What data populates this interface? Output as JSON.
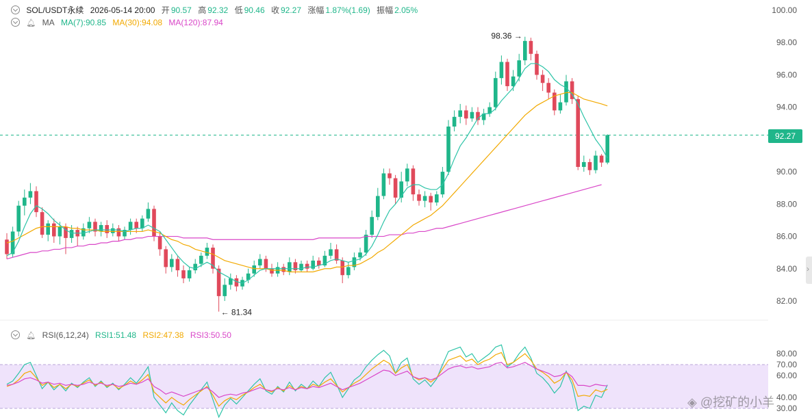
{
  "header": {
    "symbol": "SOL/USDT永续",
    "datetime": "2026-05-14 20:00",
    "open_label": "开",
    "open": "90.57",
    "high_label": "高",
    "high": "92.32",
    "low_label": "低",
    "low": "90.46",
    "close_label": "收",
    "close": "92.27",
    "change_label": "涨幅",
    "change": "1.87%(1.69)",
    "amplitude_label": "振幅",
    "amplitude": "2.05%"
  },
  "ma_legend": {
    "title": "MA",
    "ma7": "MA(7):90.85",
    "ma30": "MA(30):94.08",
    "ma120": "MA(120):87.94"
  },
  "rsi_legend": {
    "title": "RSI(6,12,24)",
    "rsi1": "RSI1:51.48",
    "rsi2": "RSI2:47.38",
    "rsi3": "RSI3:50.50"
  },
  "price_axis": [
    "100.00",
    "98.00",
    "96.00",
    "94.00",
    "92.27",
    "90.00",
    "88.00",
    "86.00",
    "84.00",
    "82.00"
  ],
  "rsi_axis": [
    "80.00",
    "70.00",
    "60.00",
    "40.00",
    "30.00"
  ],
  "current_price": "92.27",
  "annotations": {
    "high": "98.36",
    "low": "81.34"
  },
  "watermark": "挖矿的小羊",
  "colors": {
    "up": "#1fb68a",
    "down": "#e0495b",
    "ma7": "#2ec4a8",
    "ma30": "#f2a900",
    "ma120": "#d946c8",
    "rsi_band": "#efe3fb"
  },
  "chart_data": [
    {
      "type": "candlestick",
      "ylim": [
        80.5,
        100.5
      ],
      "candles": [
        [
          85.8,
          84.9,
          86.2,
          84.6
        ],
        [
          84.9,
          86.3,
          86.6,
          84.7
        ],
        [
          86.3,
          87.9,
          88.2,
          86.0
        ],
        [
          87.9,
          88.4,
          88.9,
          87.3
        ],
        [
          88.4,
          88.8,
          89.3,
          88.0
        ],
        [
          88.8,
          87.5,
          89.1,
          87.2
        ],
        [
          87.5,
          86.1,
          87.8,
          85.9
        ],
        [
          86.1,
          86.8,
          87.0,
          85.7
        ],
        [
          86.8,
          86.0,
          87.1,
          85.6
        ],
        [
          86.0,
          86.6,
          86.9,
          85.5
        ],
        [
          86.6,
          85.9,
          86.8,
          84.9
        ],
        [
          85.9,
          86.4,
          86.7,
          85.6
        ],
        [
          86.4,
          86.0,
          86.6,
          85.4
        ],
        [
          86.0,
          86.5,
          86.8,
          85.8
        ],
        [
          86.5,
          86.9,
          87.2,
          86.2
        ],
        [
          86.9,
          86.3,
          87.1,
          86.0
        ],
        [
          86.3,
          86.7,
          86.9,
          86.0
        ],
        [
          86.7,
          86.2,
          87.0,
          85.9
        ],
        [
          86.2,
          86.5,
          86.8,
          86.0
        ],
        [
          86.5,
          86.0,
          86.7,
          85.7
        ],
        [
          86.0,
          86.4,
          86.6,
          85.8
        ],
        [
          86.4,
          86.9,
          87.1,
          86.1
        ],
        [
          86.9,
          86.5,
          87.1,
          86.2
        ],
        [
          86.5,
          87.1,
          87.3,
          86.3
        ],
        [
          87.1,
          87.7,
          88.1,
          86.9
        ],
        [
          87.7,
          86.0,
          87.9,
          85.7
        ],
        [
          86.0,
          85.2,
          86.3,
          84.8
        ],
        [
          85.2,
          84.1,
          85.4,
          83.7
        ],
        [
          84.1,
          84.6,
          84.9,
          83.8
        ],
        [
          84.6,
          83.9,
          84.8,
          83.5
        ],
        [
          83.9,
          83.4,
          84.2,
          83.1
        ],
        [
          83.4,
          83.9,
          84.1,
          83.2
        ],
        [
          83.9,
          84.3,
          84.6,
          83.7
        ],
        [
          84.3,
          84.8,
          85.0,
          84.1
        ],
        [
          84.8,
          85.3,
          85.6,
          84.6
        ],
        [
          85.3,
          84.0,
          85.5,
          83.7
        ],
        [
          84.0,
          82.3,
          84.2,
          81.34
        ],
        [
          82.3,
          83.0,
          83.4,
          82.0
        ],
        [
          83.0,
          83.4,
          83.7,
          82.7
        ],
        [
          83.4,
          82.9,
          83.6,
          82.6
        ],
        [
          82.9,
          83.3,
          83.5,
          82.7
        ],
        [
          83.3,
          83.7,
          84.0,
          83.1
        ],
        [
          83.7,
          84.2,
          84.5,
          83.5
        ],
        [
          84.2,
          84.6,
          84.9,
          84.0
        ],
        [
          84.6,
          84.0,
          84.8,
          83.8
        ],
        [
          84.0,
          83.7,
          84.3,
          83.5
        ],
        [
          83.7,
          84.1,
          84.4,
          83.5
        ],
        [
          84.1,
          83.8,
          84.3,
          83.6
        ],
        [
          83.8,
          84.4,
          84.7,
          83.6
        ],
        [
          84.4,
          83.9,
          84.6,
          83.7
        ],
        [
          83.9,
          84.3,
          84.5,
          83.8
        ],
        [
          84.3,
          84.0,
          84.5,
          83.8
        ],
        [
          84.0,
          84.5,
          84.8,
          83.9
        ],
        [
          84.5,
          84.2,
          84.7,
          84.0
        ],
        [
          84.2,
          84.8,
          85.1,
          84.1
        ],
        [
          84.8,
          85.2,
          85.6,
          84.6
        ],
        [
          85.2,
          84.5,
          85.5,
          84.3
        ],
        [
          84.5,
          83.6,
          84.7,
          83.1
        ],
        [
          83.6,
          84.1,
          84.4,
          83.4
        ],
        [
          84.1,
          84.7,
          85.0,
          83.9
        ],
        [
          84.7,
          85.0,
          85.3,
          84.5
        ],
        [
          85.0,
          86.1,
          86.4,
          84.8
        ],
        [
          86.1,
          87.2,
          87.6,
          85.9
        ],
        [
          87.2,
          88.5,
          89.0,
          87.0
        ],
        [
          88.5,
          89.9,
          90.2,
          88.3
        ],
        [
          89.9,
          89.6,
          90.2,
          89.2
        ],
        [
          89.6,
          88.4,
          89.8,
          88.0
        ],
        [
          88.4,
          89.4,
          90.0,
          88.1
        ],
        [
          89.4,
          90.2,
          90.5,
          89.1
        ],
        [
          90.2,
          88.6,
          90.4,
          88.2
        ],
        [
          88.6,
          88.2,
          88.9,
          87.9
        ],
        [
          88.2,
          88.5,
          88.8,
          87.8
        ],
        [
          88.5,
          88.1,
          88.7,
          87.6
        ],
        [
          88.1,
          88.6,
          88.8,
          87.9
        ],
        [
          88.6,
          90.0,
          90.3,
          88.4
        ],
        [
          90.0,
          92.8,
          93.2,
          89.8
        ],
        [
          92.8,
          93.4,
          93.8,
          92.5
        ],
        [
          93.4,
          93.8,
          94.2,
          93.0
        ],
        [
          93.8,
          93.3,
          94.1,
          92.9
        ],
        [
          93.3,
          93.7,
          94.0,
          93.1
        ],
        [
          93.7,
          93.2,
          94.0,
          92.9
        ],
        [
          93.2,
          93.6,
          93.9,
          92.9
        ],
        [
          93.6,
          94.0,
          94.3,
          93.4
        ],
        [
          94.0,
          95.8,
          96.2,
          93.8
        ],
        [
          95.8,
          96.8,
          97.2,
          95.4
        ],
        [
          96.8,
          95.3,
          97.0,
          95.0
        ],
        [
          95.3,
          95.9,
          96.3,
          95.0
        ],
        [
          95.9,
          96.9,
          97.3,
          95.6
        ],
        [
          96.9,
          98.1,
          98.36,
          96.6
        ],
        [
          98.1,
          97.3,
          98.3,
          96.9
        ],
        [
          97.3,
          96.0,
          97.5,
          95.7
        ],
        [
          96.0,
          95.5,
          96.3,
          95.0
        ],
        [
          95.5,
          94.9,
          95.8,
          94.5
        ],
        [
          94.9,
          93.8,
          95.1,
          93.5
        ],
        [
          93.8,
          94.3,
          94.8,
          93.6
        ],
        [
          94.3,
          95.6,
          96.0,
          94.1
        ],
        [
          95.6,
          94.5,
          95.8,
          94.2
        ],
        [
          94.5,
          90.3,
          94.7,
          90.1
        ],
        [
          90.3,
          90.6,
          91.0,
          90.0
        ],
        [
          90.6,
          90.1,
          90.8,
          89.8
        ],
        [
          90.1,
          91.0,
          91.3,
          89.9
        ],
        [
          91.0,
          90.57,
          91.1,
          90.3
        ],
        [
          90.57,
          92.27,
          92.32,
          90.46
        ]
      ],
      "ma7": [
        84.8,
        85.0,
        85.7,
        86.6,
        87.4,
        87.9,
        87.7,
        87.4,
        87.0,
        86.7,
        86.4,
        86.2,
        86.2,
        86.2,
        86.3,
        86.4,
        86.4,
        86.4,
        86.4,
        86.4,
        86.3,
        86.4,
        86.5,
        86.5,
        86.7,
        86.5,
        86.3,
        85.8,
        85.3,
        84.8,
        84.4,
        84.1,
        84.0,
        84.2,
        84.4,
        84.2,
        83.8,
        83.6,
        83.4,
        83.2,
        83.1,
        83.3,
        83.6,
        83.9,
        84.0,
        84.0,
        84.0,
        84.0,
        84.0,
        84.0,
        84.0,
        84.1,
        84.1,
        84.2,
        84.3,
        84.5,
        84.6,
        84.5,
        84.4,
        84.5,
        84.6,
        84.9,
        85.4,
        86.1,
        86.9,
        87.6,
        88.0,
        88.5,
        89.0,
        89.2,
        89.2,
        89.0,
        88.9,
        88.9,
        89.2,
        89.9,
        90.8,
        91.6,
        92.1,
        92.7,
        93.3,
        93.6,
        93.6,
        93.9,
        94.4,
        94.8,
        95.2,
        95.8,
        96.4,
        96.7,
        96.7,
        96.5,
        96.2,
        95.7,
        95.4,
        95.2,
        94.8,
        94.2,
        93.4,
        92.7,
        92.0,
        91.5,
        90.85
      ],
      "ma30": [
        85.6,
        85.7,
        85.9,
        86.1,
        86.3,
        86.5,
        86.6,
        86.6,
        86.6,
        86.6,
        86.6,
        86.5,
        86.5,
        86.4,
        86.4,
        86.4,
        86.3,
        86.3,
        86.3,
        86.3,
        86.3,
        86.3,
        86.3,
        86.3,
        86.4,
        86.3,
        86.2,
        86.0,
        85.8,
        85.7,
        85.5,
        85.4,
        85.2,
        85.1,
        85.0,
        84.9,
        84.7,
        84.5,
        84.4,
        84.3,
        84.2,
        84.1,
        84.0,
        84.0,
        84.0,
        83.9,
        83.9,
        83.9,
        83.8,
        83.8,
        83.8,
        83.8,
        83.8,
        83.9,
        84.0,
        84.0,
        84.1,
        84.1,
        84.2,
        84.2,
        84.3,
        84.5,
        84.7,
        85.0,
        85.2,
        85.5,
        85.8,
        86.1,
        86.4,
        86.7,
        86.9,
        87.1,
        87.3,
        87.6,
        87.9,
        88.3,
        88.7,
        89.1,
        89.5,
        89.9,
        90.3,
        90.7,
        91.1,
        91.5,
        91.9,
        92.3,
        92.7,
        93.1,
        93.5,
        93.8,
        94.1,
        94.3,
        94.5,
        94.7,
        94.8,
        94.9,
        94.9,
        94.7,
        94.5,
        94.4,
        94.3,
        94.2,
        94.08
      ],
      "ma120": [
        84.6,
        84.7,
        84.8,
        84.9,
        85.0,
        85.0,
        85.1,
        85.1,
        85.2,
        85.2,
        85.3,
        85.3,
        85.4,
        85.4,
        85.5,
        85.5,
        85.6,
        85.6,
        85.7,
        85.7,
        85.8,
        85.8,
        85.9,
        85.9,
        86.0,
        86.0,
        86.0,
        86.0,
        86.0,
        86.0,
        85.9,
        85.9,
        85.9,
        85.9,
        85.9,
        85.8,
        85.8,
        85.8,
        85.8,
        85.8,
        85.8,
        85.8,
        85.8,
        85.8,
        85.8,
        85.8,
        85.8,
        85.8,
        85.8,
        85.8,
        85.8,
        85.8,
        85.8,
        85.9,
        85.9,
        85.9,
        85.9,
        85.9,
        85.9,
        85.9,
        85.9,
        86.0,
        86.0,
        86.0,
        86.0,
        86.1,
        86.1,
        86.1,
        86.2,
        86.2,
        86.3,
        86.3,
        86.4,
        86.5,
        86.5,
        86.6,
        86.7,
        86.8,
        86.9,
        87.0,
        87.1,
        87.2,
        87.3,
        87.4,
        87.5,
        87.6,
        87.7,
        87.8,
        87.9,
        88.0,
        88.1,
        88.2,
        88.3,
        88.4,
        88.5,
        88.6,
        88.7,
        88.8,
        88.9,
        89.0,
        89.1,
        89.2,
        87.94
      ],
      "label_high": "98.36",
      "label_low": "81.34"
    },
    {
      "type": "line",
      "title": "RSI(6,12,24)",
      "ylim": [
        25,
        85
      ],
      "bands": [
        30,
        70
      ],
      "series": [
        {
          "name": "RSI1",
          "values": [
            52,
            55,
            62,
            70,
            72,
            60,
            48,
            54,
            47,
            52,
            46,
            53,
            49,
            54,
            58,
            50,
            55,
            49,
            53,
            47,
            52,
            58,
            53,
            60,
            68,
            40,
            33,
            26,
            35,
            28,
            24,
            33,
            40,
            47,
            54,
            38,
            22,
            33,
            39,
            34,
            40,
            46,
            52,
            57,
            46,
            43,
            50,
            45,
            54,
            46,
            52,
            48,
            55,
            50,
            58,
            63,
            52,
            40,
            48,
            56,
            60,
            68,
            74,
            79,
            83,
            78,
            62,
            72,
            76,
            57,
            52,
            56,
            50,
            57,
            70,
            82,
            84,
            86,
            77,
            80,
            72,
            76,
            80,
            86,
            88,
            68,
            72,
            80,
            86,
            76,
            62,
            58,
            52,
            44,
            50,
            64,
            52,
            28,
            32,
            30,
            42,
            40,
            51.48
          ]
        },
        {
          "name": "RSI2",
          "values": [
            50,
            52,
            56,
            62,
            64,
            58,
            51,
            54,
            49,
            52,
            48,
            52,
            50,
            53,
            56,
            51,
            54,
            50,
            52,
            48,
            51,
            55,
            52,
            56,
            61,
            45,
            40,
            35,
            40,
            36,
            33,
            38,
            42,
            46,
            50,
            42,
            32,
            37,
            40,
            38,
            42,
            45,
            49,
            52,
            47,
            45,
            49,
            46,
            51,
            47,
            50,
            48,
            52,
            50,
            54,
            57,
            51,
            45,
            49,
            53,
            56,
            61,
            66,
            70,
            74,
            71,
            62,
            67,
            70,
            59,
            56,
            58,
            54,
            58,
            66,
            74,
            76,
            78,
            73,
            75,
            70,
            73,
            75,
            79,
            81,
            70,
            72,
            76,
            80,
            74,
            66,
            63,
            59,
            53,
            56,
            63,
            56,
            41,
            42,
            41,
            47,
            45,
            47.38
          ]
        },
        {
          "name": "RSI3",
          "values": [
            51,
            52,
            54,
            57,
            58,
            56,
            53,
            54,
            52,
            53,
            51,
            52,
            51,
            52,
            54,
            52,
            53,
            51,
            52,
            50,
            51,
            53,
            52,
            54,
            57,
            50,
            47,
            43,
            45,
            43,
            41,
            43,
            45,
            47,
            49,
            45,
            40,
            42,
            43,
            42,
            44,
            45,
            47,
            49,
            47,
            46,
            48,
            47,
            49,
            47,
            49,
            48,
            50,
            49,
            51,
            53,
            50,
            47,
            49,
            51,
            53,
            56,
            59,
            62,
            65,
            64,
            60,
            62,
            64,
            59,
            57,
            58,
            56,
            58,
            62,
            66,
            68,
            69,
            67,
            68,
            66,
            67,
            68,
            71,
            72,
            67,
            68,
            70,
            72,
            69,
            66,
            64,
            62,
            59,
            60,
            63,
            59,
            51,
            51,
            50,
            52,
            51,
            50.5
          ]
        }
      ]
    }
  ]
}
